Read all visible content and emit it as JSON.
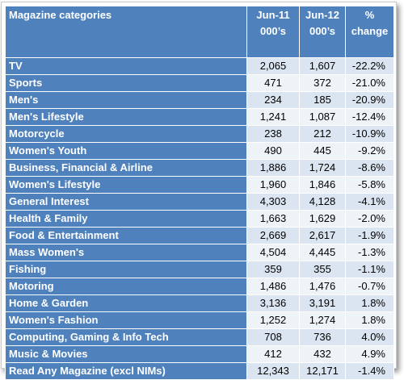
{
  "table": {
    "headers": {
      "category": "Magazine categories",
      "jun11": [
        "Jun-11",
        "000’s"
      ],
      "jun12": [
        "Jun-12",
        "000’s"
      ],
      "change": [
        "%",
        "change"
      ]
    },
    "rows": [
      {
        "category": "TV",
        "jun11": "2,065",
        "jun12": "1,607",
        "change": "-22.2%"
      },
      {
        "category": "Sports",
        "jun11": "471",
        "jun12": "372",
        "change": "-21.0%"
      },
      {
        "category": "Men's",
        "jun11": "234",
        "jun12": "185",
        "change": "-20.9%"
      },
      {
        "category": "Men's Lifestyle",
        "jun11": "1,241",
        "jun12": "1,087",
        "change": "-12.4%"
      },
      {
        "category": "Motorcycle",
        "jun11": "238",
        "jun12": "212",
        "change": "-10.9%"
      },
      {
        "category": "Women's Youth",
        "jun11": "490",
        "jun12": "445",
        "change": "-9.2%"
      },
      {
        "category": "Business, Financial & Airline",
        "jun11": "1,886",
        "jun12": "1,724",
        "change": "-8.6%"
      },
      {
        "category": "Women's Lifestyle",
        "jun11": "1,960",
        "jun12": "1,846",
        "change": "-5.8%"
      },
      {
        "category": "General Interest",
        "jun11": "4,303",
        "jun12": "4,128",
        "change": "-4.1%"
      },
      {
        "category": "Health & Family",
        "jun11": "1,663",
        "jun12": "1,629",
        "change": "-2.0%"
      },
      {
        "category": "Food & Entertainment",
        "jun11": "2,669",
        "jun12": "2,617",
        "change": "-1.9%"
      },
      {
        "category": "Mass Women's",
        "jun11": "4,504",
        "jun12": "4,445",
        "change": "-1.3%"
      },
      {
        "category": "Fishing",
        "jun11": "359",
        "jun12": "355",
        "change": "-1.1%"
      },
      {
        "category": "Motoring",
        "jun11": "1,486",
        "jun12": "1,476",
        "change": "-0.7%"
      },
      {
        "category": "Home & Garden",
        "jun11": "3,136",
        "jun12": "3,191",
        "change": "1.8%"
      },
      {
        "category": "Women's Fashion",
        "jun11": "1,252",
        "jun12": "1,274",
        "change": "1.8%"
      },
      {
        "category": "Computing, Gaming & Info Tech",
        "jun11": "708",
        "jun12": "736",
        "change": "4.0%"
      },
      {
        "category": "Music & Movies",
        "jun11": "412",
        "jun12": "432",
        "change": "4.9%"
      },
      {
        "category": "Read Any Magazine (excl NIMs)",
        "jun11": "12,343",
        "jun12": "12,171",
        "change": "-1.4%"
      }
    ]
  },
  "colors": {
    "header_bg": "#4f81bd",
    "row_light": "#dbe5f1",
    "row_lighter": "#eef3f8"
  }
}
